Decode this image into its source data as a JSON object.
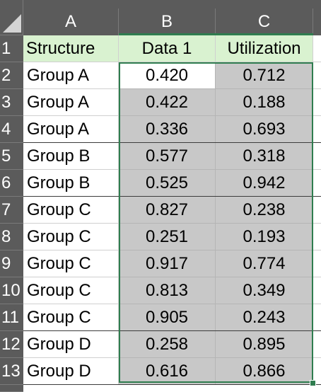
{
  "sheet": {
    "columns": [
      "A",
      "B",
      "C"
    ],
    "rows": [
      "1",
      "2",
      "3",
      "4",
      "5",
      "6",
      "7",
      "8",
      "9",
      "10",
      "11",
      "12",
      "13"
    ],
    "headers": [
      "Structure",
      "Data 1",
      "Utilization"
    ],
    "data": [
      {
        "structure": "Group A",
        "data1": "0.420",
        "utilization": "0.712"
      },
      {
        "structure": "Group A",
        "data1": "0.422",
        "utilization": "0.188"
      },
      {
        "structure": "Group A",
        "data1": "0.336",
        "utilization": "0.693"
      },
      {
        "structure": "Group B",
        "data1": "0.577",
        "utilization": "0.318"
      },
      {
        "structure": "Group B",
        "data1": "0.525",
        "utilization": "0.942"
      },
      {
        "structure": "Group C",
        "data1": "0.827",
        "utilization": "0.238"
      },
      {
        "structure": "Group C",
        "data1": "0.251",
        "utilization": "0.193"
      },
      {
        "structure": "Group C",
        "data1": "0.917",
        "utilization": "0.774"
      },
      {
        "structure": "Group C",
        "data1": "0.813",
        "utilization": "0.349"
      },
      {
        "structure": "Group C",
        "data1": "0.905",
        "utilization": "0.243"
      },
      {
        "structure": "Group D",
        "data1": "0.258",
        "utilization": "0.895"
      },
      {
        "structure": "Group D",
        "data1": "0.616",
        "utilization": "0.866"
      }
    ]
  },
  "colors": {
    "header_fill": "#d9f2d0",
    "selection_fill": "#c8c8c8",
    "selection_border": "#2f7d4f",
    "chrome": "#5b5b5b"
  }
}
